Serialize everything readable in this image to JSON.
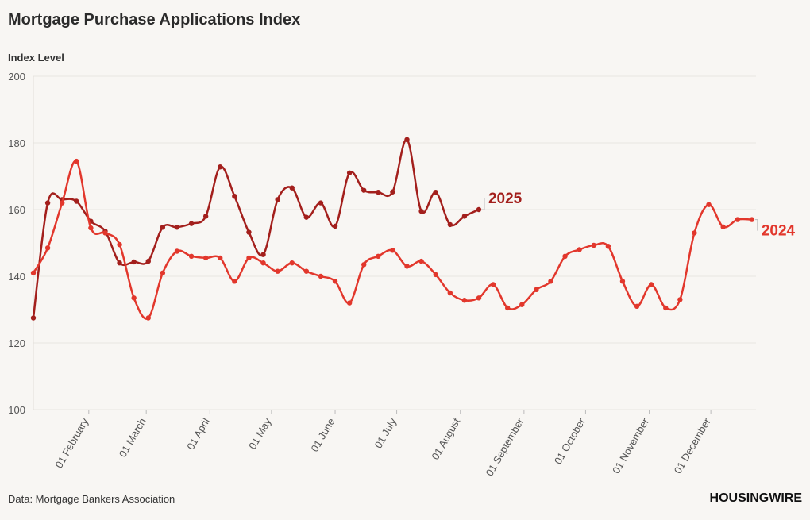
{
  "chart_data": {
    "type": "line",
    "title": "Mortgage Purchase Applications Index",
    "y_label": "Index Level",
    "source": "Data: Mortgage Bankers Association",
    "brand": "HOUSINGWIRE",
    "x": [
      5,
      12,
      19,
      26,
      33,
      40,
      47,
      54,
      61,
      68,
      75,
      82,
      89,
      96,
      103,
      110,
      117,
      124,
      131,
      138,
      145,
      152,
      159,
      166,
      173,
      180,
      187,
      194,
      201,
      208,
      215,
      222,
      229,
      236,
      243,
      250,
      257,
      264,
      271,
      278,
      285,
      292,
      299,
      306,
      313,
      320,
      327,
      334,
      341,
      348,
      355
    ],
    "xlim": [
      5,
      357
    ],
    "xticks": [
      {
        "value": 32,
        "label": "01 February"
      },
      {
        "value": 60,
        "label": "01 March"
      },
      {
        "value": 91,
        "label": "01 April"
      },
      {
        "value": 121,
        "label": "01 May"
      },
      {
        "value": 152,
        "label": "01 June"
      },
      {
        "value": 182,
        "label": "01 July"
      },
      {
        "value": 213,
        "label": "01 August"
      },
      {
        "value": 244,
        "label": "01 September"
      },
      {
        "value": 274,
        "label": "01 October"
      },
      {
        "value": 305,
        "label": "01 November"
      },
      {
        "value": 335,
        "label": "01 December"
      }
    ],
    "ylim": [
      100,
      200
    ],
    "yticks": [
      100,
      120,
      140,
      160,
      180,
      200
    ],
    "grid": true,
    "series": [
      {
        "name": "2025",
        "color": "#a31f1c",
        "values": [
          127.5,
          162,
          163,
          162.5,
          156.5,
          153.5,
          144,
          144.3,
          144.5,
          154.7,
          154.7,
          155.8,
          158,
          172.8,
          164,
          153.2,
          146.5,
          163,
          166.5,
          157.7,
          162,
          155,
          171,
          165.8,
          165.2,
          165.3,
          181,
          159.5,
          165.2,
          155.5,
          158,
          160,
          null,
          null,
          null,
          null,
          null,
          null,
          null,
          null,
          null,
          null,
          null,
          null,
          null,
          null,
          null,
          null,
          null,
          null,
          null
        ]
      },
      {
        "name": "2024",
        "color": "#e2372c",
        "values": [
          141,
          148.5,
          162,
          174.5,
          154.5,
          153,
          149.5,
          133.5,
          127.5,
          141,
          147.5,
          146,
          145.5,
          145.5,
          138.5,
          145.5,
          144,
          141.5,
          144,
          141.5,
          140,
          138.5,
          132,
          143.5,
          146,
          147.8,
          143,
          144.5,
          140.5,
          135,
          132.8,
          133.5,
          137.5,
          130.5,
          131.5,
          136,
          138.5,
          146,
          148,
          149.3,
          149,
          138.5,
          131,
          137.5,
          130.5,
          133,
          153,
          161.5,
          154.8,
          157,
          157
        ]
      }
    ]
  }
}
